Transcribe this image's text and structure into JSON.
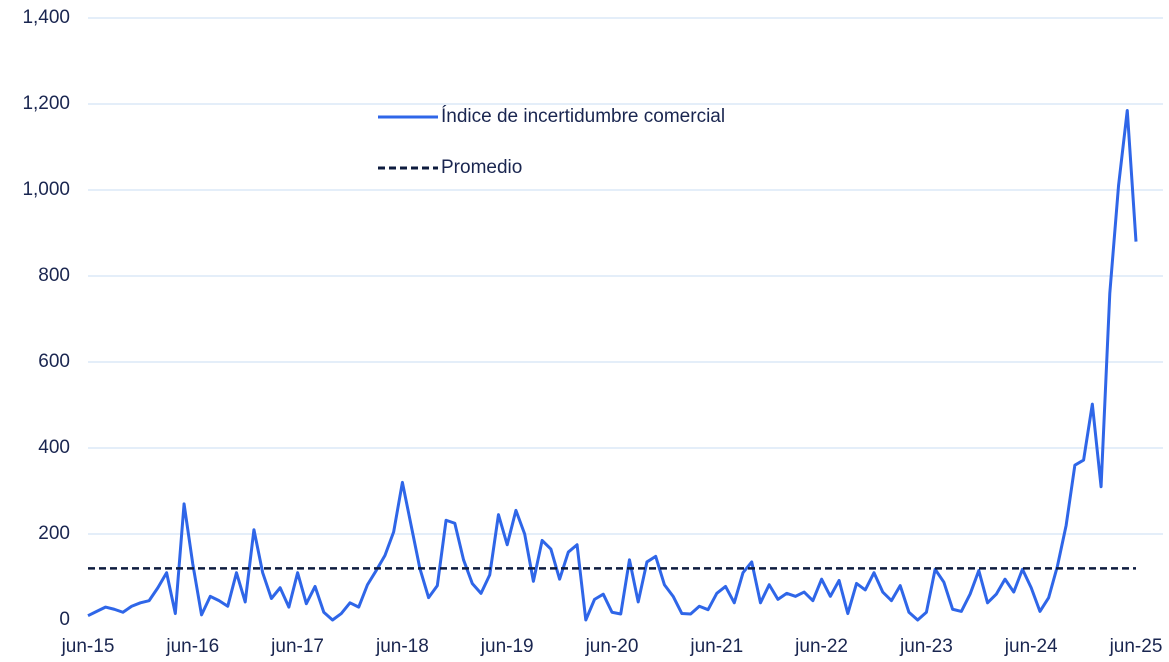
{
  "chart_data": {
    "type": "line",
    "categories": [
      "jun-15",
      null,
      null,
      null,
      null,
      null,
      null,
      null,
      null,
      null,
      null,
      null,
      "jun-16",
      null,
      null,
      null,
      null,
      null,
      null,
      null,
      null,
      null,
      null,
      null,
      "jun-17",
      null,
      null,
      null,
      null,
      null,
      null,
      null,
      null,
      null,
      null,
      null,
      "jun-18",
      null,
      null,
      null,
      null,
      null,
      null,
      null,
      null,
      null,
      null,
      null,
      "jun-19",
      null,
      null,
      null,
      null,
      null,
      null,
      null,
      null,
      null,
      null,
      null,
      "jun-20",
      null,
      null,
      null,
      null,
      null,
      null,
      null,
      null,
      null,
      null,
      null,
      "jun-21",
      null,
      null,
      null,
      null,
      null,
      null,
      null,
      null,
      null,
      null,
      null,
      "jun-22",
      null,
      null,
      null,
      null,
      null,
      null,
      null,
      null,
      null,
      null,
      null,
      "jun-23",
      null,
      null,
      null,
      null,
      null,
      null,
      null,
      null,
      null,
      null,
      null,
      "jun-24",
      null,
      null,
      null,
      null,
      null,
      null,
      null,
      null,
      null,
      null,
      null,
      "jun-25"
    ],
    "series": [
      {
        "name": "Índice de incertidumbre comercial",
        "color": "#2f66e8",
        "values": [
          10,
          20,
          30,
          25,
          18,
          32,
          40,
          45,
          75,
          110,
          15,
          270,
          130,
          12,
          55,
          45,
          32,
          110,
          42,
          210,
          110,
          50,
          75,
          30,
          110,
          38,
          78,
          18,
          0,
          15,
          40,
          30,
          82,
          115,
          150,
          205,
          320,
          220,
          120,
          52,
          80,
          232,
          225,
          140,
          85,
          62,
          105,
          245,
          175,
          255,
          200,
          90,
          185,
          165,
          95,
          158,
          175,
          0,
          48,
          60,
          18,
          14,
          140,
          42,
          135,
          148,
          82,
          55,
          15,
          14,
          32,
          24,
          62,
          78,
          40,
          110,
          135,
          40,
          82,
          48,
          62,
          55,
          65,
          45,
          95,
          55,
          92,
          15,
          85,
          70,
          110,
          65,
          45,
          80,
          18,
          0,
          18,
          118,
          88,
          25,
          20,
          60,
          115,
          40,
          60,
          95,
          65,
          118,
          75,
          20,
          52,
          125,
          220,
          360,
          372,
          502,
          310,
          760,
          1010,
          1185,
          880
        ]
      },
      {
        "name": "Promedio",
        "color": "#0d1b3e",
        "dashed": true,
        "value": 120
      }
    ],
    "ylim": [
      0,
      1400
    ],
    "yticks": [
      0,
      {
        "value": 200,
        "label": "200"
      },
      400,
      600,
      800,
      {
        "value": 1000,
        "label": "1,000"
      },
      {
        "value": 1200,
        "label": "1,200"
      },
      {
        "value": 1400,
        "label": "1,400"
      }
    ],
    "grid": true
  }
}
